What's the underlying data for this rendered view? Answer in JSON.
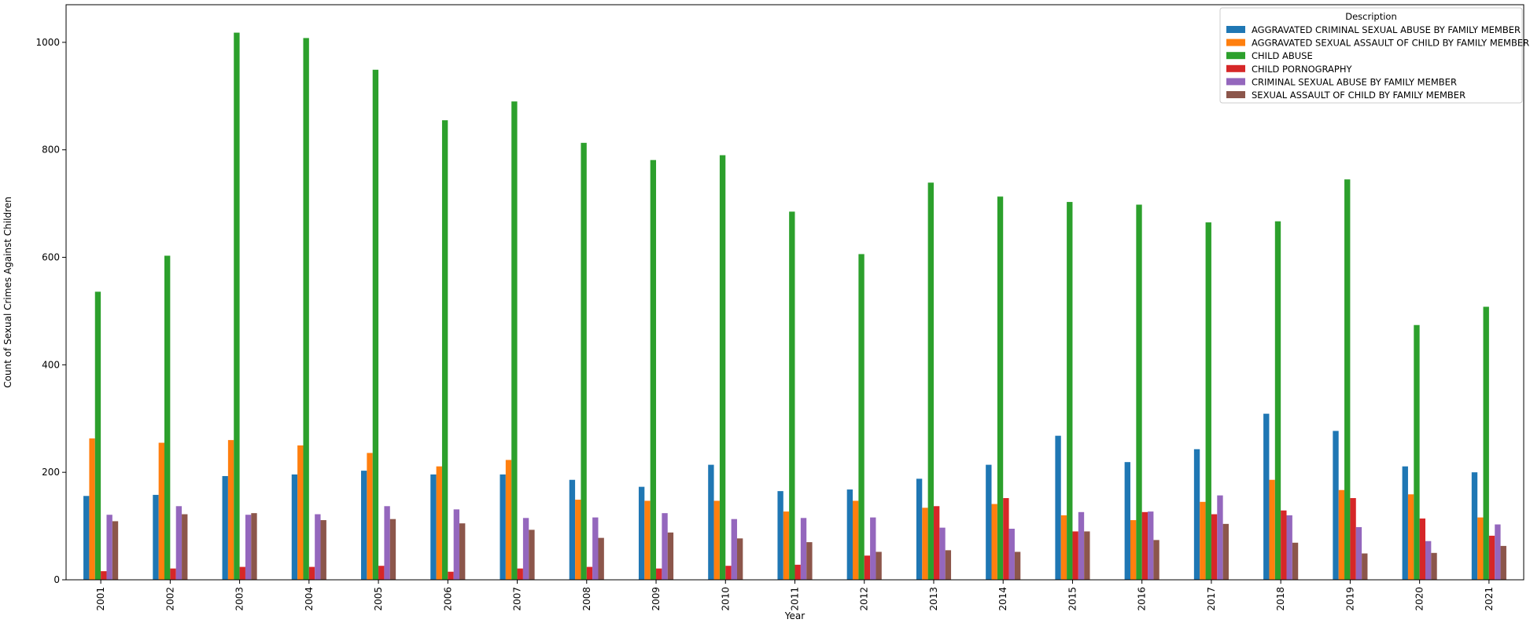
{
  "chart_data": {
    "type": "bar",
    "title": "",
    "xlabel": "Year",
    "ylabel": "Count of Sexual Crimes Against Children",
    "ylim": [
      0,
      1070
    ],
    "yticks": [
      0,
      200,
      400,
      600,
      800,
      1000
    ],
    "grid": false,
    "legend": {
      "title": "Description",
      "placement": "top-right"
    },
    "categories": [
      "2001",
      "2002",
      "2003",
      "2004",
      "2005",
      "2006",
      "2007",
      "2008",
      "2009",
      "2010",
      "2011",
      "2012",
      "2013",
      "2014",
      "2015",
      "2016",
      "2017",
      "2018",
      "2019",
      "2020",
      "2021"
    ],
    "series": [
      {
        "name": "AGGRAVATED CRIMINAL SEXUAL ABUSE BY FAMILY MEMBER",
        "color": "#1f77b4",
        "values": [
          156,
          158,
          193,
          196,
          203,
          196,
          196,
          186,
          173,
          214,
          165,
          168,
          188,
          214,
          268,
          219,
          243,
          309,
          277,
          211,
          200
        ]
      },
      {
        "name": "AGGRAVATED SEXUAL ASSAULT OF CHILD BY FAMILY MEMBER",
        "color": "#ff7f0e",
        "values": [
          263,
          255,
          260,
          250,
          236,
          211,
          223,
          149,
          147,
          147,
          127,
          147,
          134,
          141,
          120,
          111,
          145,
          186,
          167,
          159,
          116
        ]
      },
      {
        "name": "CHILD ABUSE",
        "color": "#2ca02c",
        "values": [
          536,
          603,
          1018,
          1008,
          949,
          855,
          890,
          813,
          781,
          790,
          685,
          606,
          739,
          713,
          703,
          698,
          665,
          667,
          745,
          474,
          508
        ]
      },
      {
        "name": "CHILD PORNOGRAPHY",
        "color": "#d62728",
        "values": [
          16,
          21,
          24,
          24,
          26,
          15,
          21,
          24,
          21,
          26,
          28,
          45,
          137,
          152,
          90,
          126,
          122,
          129,
          152,
          114,
          82
        ]
      },
      {
        "name": "CRIMINAL SEXUAL ABUSE BY FAMILY MEMBER",
        "color": "#9467bd",
        "values": [
          121,
          137,
          121,
          122,
          137,
          131,
          115,
          116,
          124,
          113,
          115,
          116,
          97,
          95,
          126,
          127,
          157,
          120,
          98,
          72,
          103
        ]
      },
      {
        "name": "SEXUAL ASSAULT OF CHILD BY FAMILY MEMBER",
        "color": "#8c564b",
        "values": [
          109,
          122,
          124,
          111,
          113,
          105,
          93,
          78,
          88,
          77,
          70,
          52,
          55,
          52,
          90,
          74,
          104,
          69,
          49,
          50,
          63
        ]
      }
    ]
  }
}
